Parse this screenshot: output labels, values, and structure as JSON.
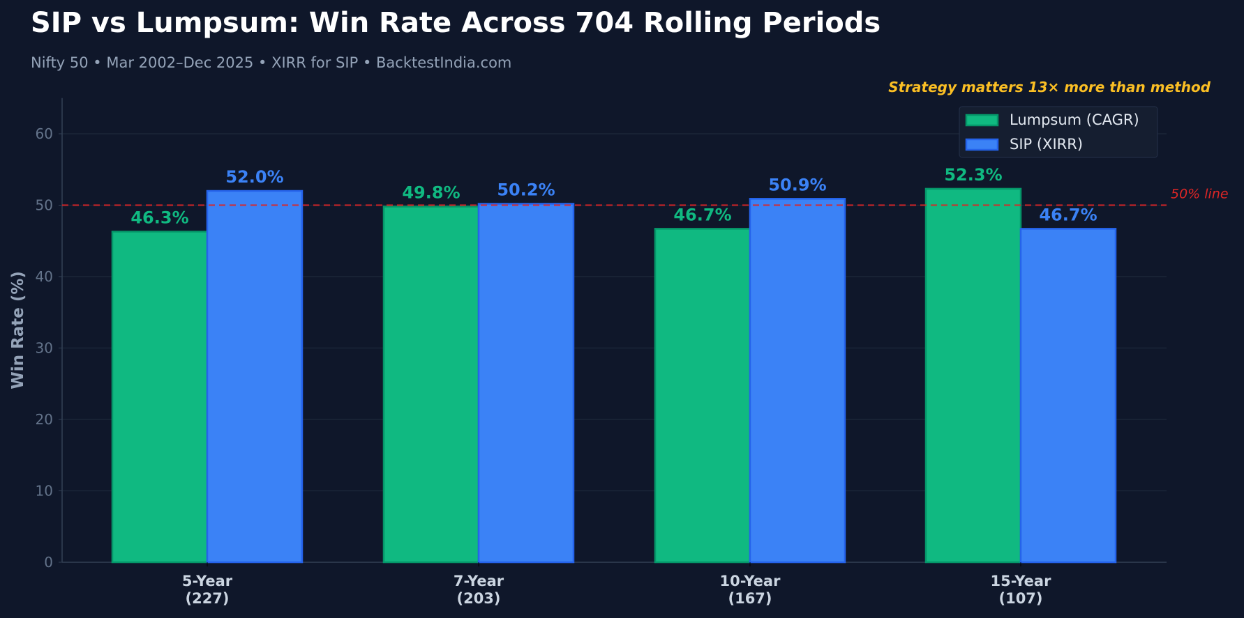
{
  "title": "SIP vs Lumpsum: Win Rate Across 704 Rolling Periods",
  "subtitle": "Nifty 50  •  Mar 2002–Dec 2025  •  XIRR for SIP  •  BacktestIndia.com",
  "chart_data": {
    "type": "bar",
    "categories": [
      "5-Year\n(227)",
      "7-Year\n(203)",
      "10-Year\n(167)",
      "15-Year\n(107)"
    ],
    "category_lines": [
      [
        "5-Year",
        "(227)"
      ],
      [
        "7-Year",
        "(203)"
      ],
      [
        "10-Year",
        "(167)"
      ],
      [
        "15-Year",
        "(107)"
      ]
    ],
    "series": [
      {
        "name": "Lumpsum (CAGR)",
        "values": [
          46.3,
          49.8,
          46.7,
          52.3
        ],
        "labels": [
          "46.3%",
          "49.8%",
          "46.7%",
          "52.3%"
        ],
        "color": "#10b981",
        "edge": "#059669"
      },
      {
        "name": "SIP (XIRR)",
        "values": [
          52.0,
          50.2,
          50.9,
          46.7
        ],
        "labels": [
          "52.0%",
          "50.2%",
          "50.9%",
          "46.7%"
        ],
        "color": "#3b82f6",
        "edge": "#2563eb"
      }
    ],
    "xlabel": "",
    "ylabel": "Win Rate (%)",
    "ylim": [
      0,
      65
    ],
    "yticks": [
      "0",
      "10",
      "20",
      "30",
      "40",
      "50",
      "60"
    ],
    "grid": true,
    "legend": "top-right",
    "reference_line": {
      "value": 50,
      "label": "50% line",
      "color": "#dc2626"
    },
    "annotation": {
      "text": "Strategy matters 13× more than method",
      "color": "#fbbf24"
    }
  },
  "colors": {
    "background": "#0f172a",
    "text": "#cbd5e1",
    "muted": "#64748b"
  }
}
